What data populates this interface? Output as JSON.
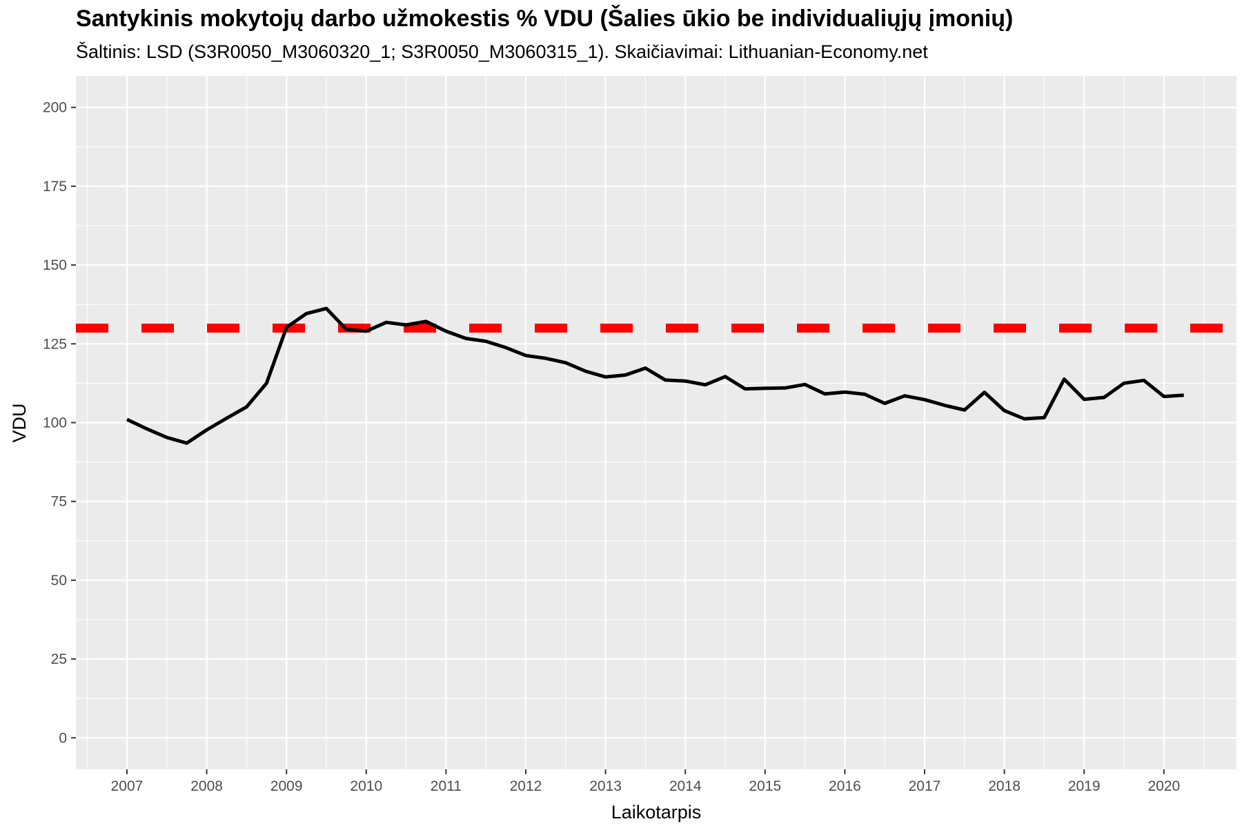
{
  "chart_data": {
    "type": "line",
    "title": "Santykinis mokytojų darbo užmokestis % VDU (Šalies ūkio be individualiųjų įmonių)",
    "subtitle": "Šaltinis: LSD (S3R0050_M3060320_1; S3R0050_M3060315_1). Skaičiavimai: Lithuanian-Economy.net",
    "xlabel": "Laikotarpis",
    "ylabel": "VDU",
    "ylim": [
      -10,
      210
    ],
    "xlim": [
      2006.36,
      2020.91
    ],
    "y_ticks": [
      0,
      25,
      50,
      75,
      100,
      125,
      150,
      175,
      200
    ],
    "x_ticks": [
      2007,
      2008,
      2009,
      2010,
      2011,
      2012,
      2013,
      2014,
      2015,
      2016,
      2017,
      2018,
      2019,
      2020
    ],
    "x_tick_labels": [
      "2007",
      "2008",
      "2009",
      "2010",
      "2011",
      "2012",
      "2013",
      "2014",
      "2015",
      "2016",
      "2017",
      "2018",
      "2019",
      "2020"
    ],
    "grid": true,
    "legend": "none",
    "colors": {
      "panel_bg": "#ebebeb",
      "grid": "#ffffff",
      "line": "#000000",
      "reference": "#ff0000"
    },
    "reference_line": {
      "y": 130,
      "style": "dashed",
      "color": "#ff0000"
    },
    "series": [
      {
        "x": [
          2007.0,
          2007.25,
          2007.5,
          2007.75,
          2008.0,
          2008.25,
          2008.5,
          2008.75,
          2009.0,
          2009.25,
          2009.5,
          2009.75,
          2010.0,
          2010.25,
          2010.5,
          2010.75,
          2011.0,
          2011.25,
          2011.5,
          2011.75,
          2012.0,
          2012.25,
          2012.5,
          2012.75,
          2013.0,
          2013.25,
          2013.5,
          2013.75,
          2014.0,
          2014.25,
          2014.5,
          2014.75,
          2015.0,
          2015.25,
          2015.5,
          2015.75,
          2016.0,
          2016.25,
          2016.5,
          2016.75,
          2017.0,
          2017.25,
          2017.5,
          2017.75,
          2018.0,
          2018.25,
          2018.5,
          2018.75,
          2019.0,
          2019.25,
          2019.5,
          2019.75,
          2020.0,
          2020.25
        ],
        "values": [
          101,
          98,
          95.3,
          93.5,
          97.7,
          101.4,
          105,
          112.5,
          130.2,
          134.6,
          136.2,
          129.6,
          129,
          131.8,
          131,
          132.1,
          129,
          126.7,
          125.8,
          123.8,
          121.3,
          120.4,
          119,
          116.3,
          114.5,
          115.1,
          117.3,
          113.5,
          113.2,
          112,
          114.6,
          110.7,
          110.9,
          111,
          112.1,
          109.1,
          109.7,
          109,
          106.1,
          108.5,
          107.3,
          105.5,
          104,
          109.6,
          103.8,
          101.2,
          101.6,
          113.8,
          107.4,
          108,
          112.5,
          113.4,
          108.3,
          108.7
        ]
      }
    ]
  }
}
